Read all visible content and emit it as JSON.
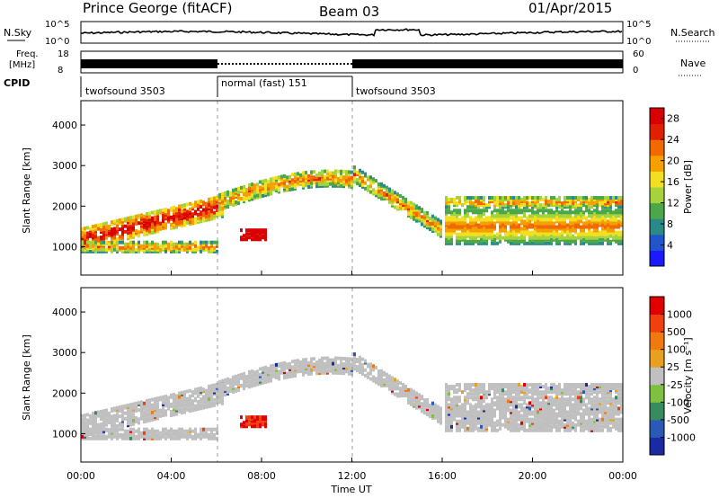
{
  "header": {
    "station": "Prince George (fitACF)",
    "beam": "Beam 03",
    "date": "01/Apr/2015"
  },
  "summary_strip": {
    "nsky_label": "N.Sky",
    "nsky_top": "10^5",
    "nsky_bottom": "10^0",
    "nsearch_label": "N.Search",
    "nsearch_top": "10^5",
    "nsearch_bottom": "10^0",
    "freq_label": "Freq.",
    "freq_unit": "[MHz]",
    "freq_top": "18",
    "freq_bottom": "8",
    "nave_label": "Nave",
    "nave_top": "60",
    "nave_bottom": "0",
    "cpid_label": "CPID"
  },
  "cpid_segments": [
    {
      "label": "twofsound 3503",
      "start_hour": 0,
      "end_hour": 6
    },
    {
      "label": "normal (fast) 151",
      "start_hour": 6,
      "end_hour": 12
    },
    {
      "label": "twofsound 3503",
      "start_hour": 12,
      "end_hour": 24
    }
  ],
  "chart_data": [
    {
      "type": "heatmap",
      "title": "Power",
      "xlabel": "Time UT",
      "ylabel": "Slant Range [km]",
      "x_ticks": [
        "00:00",
        "04:00",
        "08:00",
        "12:00",
        "16:00",
        "20:00",
        "00:00"
      ],
      "xlim_hours": [
        0,
        24
      ],
      "y_ticks": [
        1000,
        2000,
        3000,
        4000
      ],
      "ylim_km": [
        300,
        4600
      ],
      "colorbar": {
        "label": "Power [dB]",
        "ticks": [
          4,
          8,
          12,
          16,
          20,
          24,
          28
        ],
        "range": [
          0,
          30
        ],
        "colors": [
          "#1a1aff",
          "#2255cc",
          "#2a8a8a",
          "#4aa84a",
          "#a6d23c",
          "#f2e020",
          "#f5a000",
          "#f06a00",
          "#e02000",
          "#d80000"
        ]
      }
    },
    {
      "type": "heatmap",
      "title": "Velocity",
      "xlabel": "Time UT",
      "ylabel": "Slant Range [km]",
      "x_ticks": [
        "00:00",
        "04:00",
        "08:00",
        "12:00",
        "16:00",
        "20:00",
        "00:00"
      ],
      "xlim_hours": [
        0,
        24
      ],
      "y_ticks": [
        1000,
        2000,
        3000,
        4000
      ],
      "ylim_km": [
        300,
        4600
      ],
      "colorbar": {
        "label": "Velocity [m s⁻¹]",
        "ticks": [
          1000,
          500,
          100,
          25,
          -25,
          -100,
          -500,
          -1000
        ],
        "colors": [
          "#1a2aa0",
          "#2a5ab5",
          "#3a8a60",
          "#80c040",
          "#c0c0c0",
          "#e8a020",
          "#f07a10",
          "#f04010",
          "#e00000"
        ]
      }
    }
  ]
}
